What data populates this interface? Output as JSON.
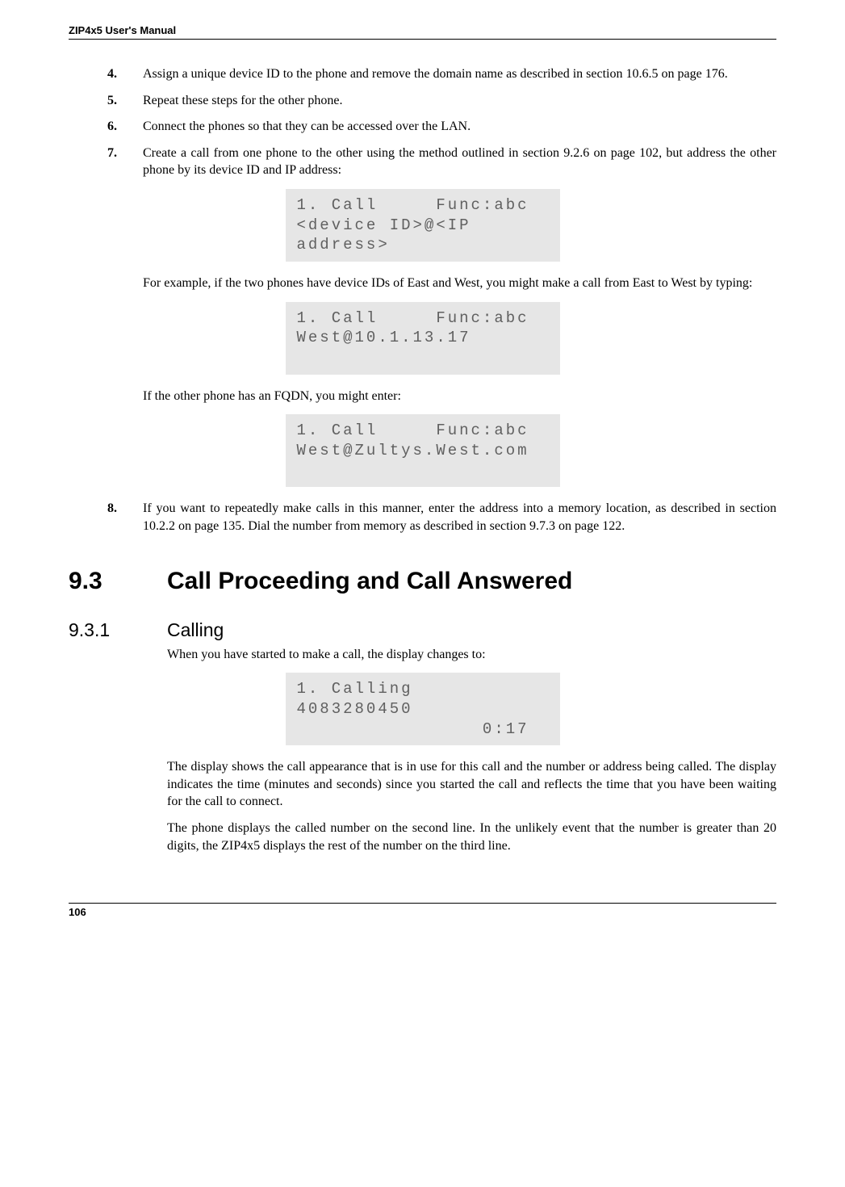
{
  "header": {
    "title": "ZIP4x5 User's Manual"
  },
  "steps": {
    "s4": {
      "num": "4.",
      "text": "Assign a unique device ID to the phone and remove the domain name as described in section 10.6.5 on page 176."
    },
    "s5": {
      "num": "5.",
      "text": "Repeat these steps for the other phone."
    },
    "s6": {
      "num": "6.",
      "text": "Connect the phones so that they can be accessed over the LAN."
    },
    "s7": {
      "num": "7.",
      "text": "Create a call from one phone to the other using the method outlined in section 9.2.6 on page 102, but address the other phone by its device ID and IP address:"
    },
    "s8": {
      "num": "8.",
      "text": "If you want to repeatedly make calls in this manner, enter the address into a memory location, as described in section 10.2.2 on page 135. Dial the number from memory as described in section 9.7.3 on page 122."
    }
  },
  "lcd": {
    "d1": "1. Call     Func:abc\n<device ID>@<IP\naddress>",
    "d2": "1. Call     Func:abc\nWest@10.1.13.17\n ",
    "d3": "1. Call     Func:abc\nWest@Zultys.West.com\n ",
    "d4": "1. Calling\n4083280450\n                0:17"
  },
  "paras": {
    "p1": "For example, if the two phones have device IDs of East and West, you might make a call from East to West by typing:",
    "p2": "If the other phone has an FQDN, you might enter:",
    "p3": "When you have started to make a call, the display changes to:",
    "p4": "The display shows the call appearance that is in use for this call and the number or address being called. The display indicates the time (minutes and seconds) since you started the call and reflects the time that you have been waiting for the call to connect.",
    "p5": "The phone displays the called number on the second line. In the unlikely event that the number is greater than 20 digits, the ZIP4x5 displays the rest of the number on the third line."
  },
  "section": {
    "num": "9.3",
    "title": "Call Proceeding and Call Answered"
  },
  "subsection": {
    "num": "9.3.1",
    "title": "Calling"
  },
  "footer": {
    "page": "106"
  }
}
